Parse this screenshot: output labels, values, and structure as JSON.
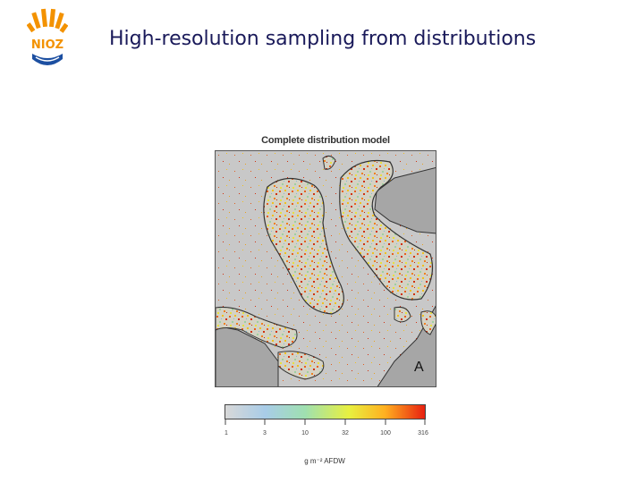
{
  "logo": {
    "text": "NIOZ",
    "colors": {
      "orange": "#f39200",
      "blue": "#1c4fa1"
    }
  },
  "slide": {
    "title": "High-resolution sampling from distributions"
  },
  "figure": {
    "title": "Complete distribution model",
    "panel_label": "A",
    "colors": {
      "land": "#a6a6a6",
      "water": "#c8c8c8",
      "flat": "#d0d0c8"
    }
  },
  "colorbar": {
    "ticks": [
      "1",
      "3",
      "10",
      "32",
      "100",
      "316"
    ],
    "unit": "g m⁻² AFDW"
  }
}
